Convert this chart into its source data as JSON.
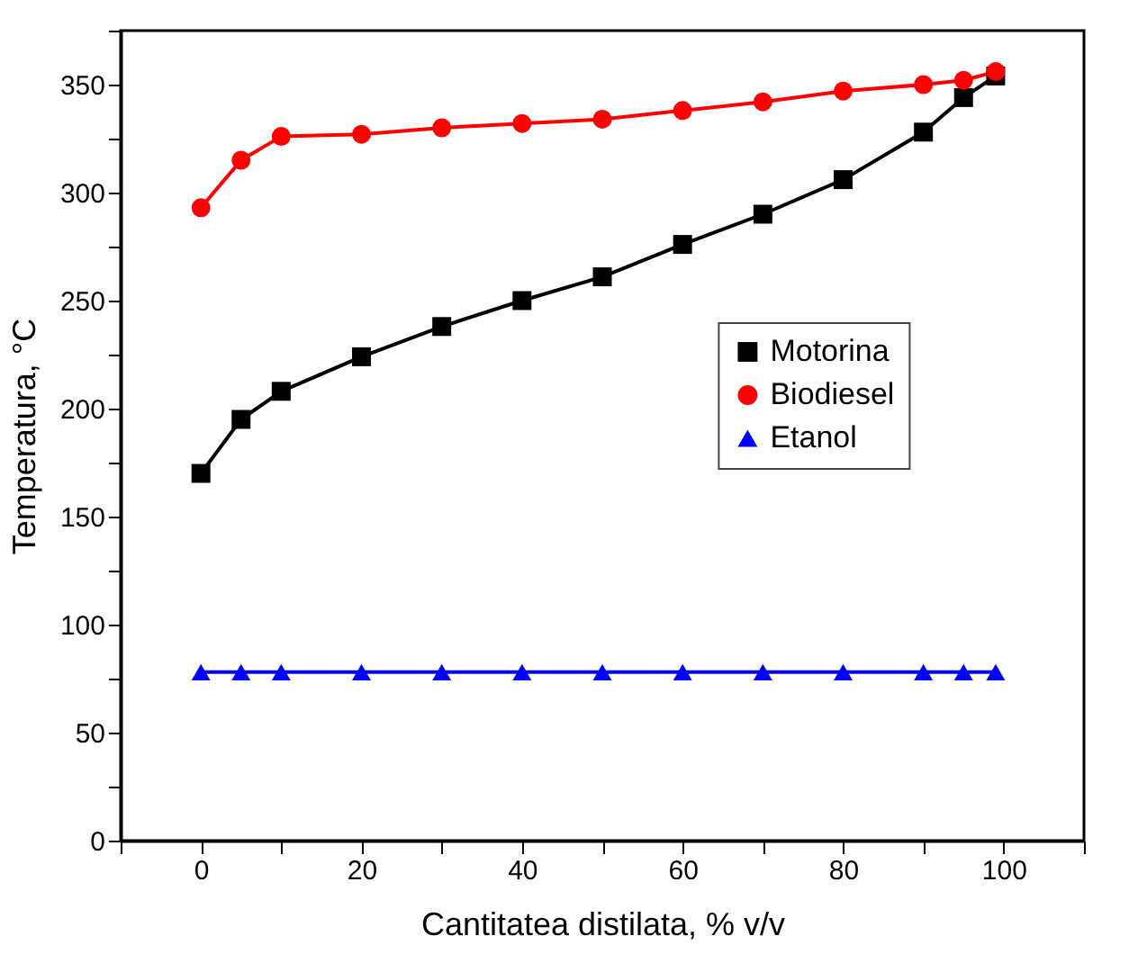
{
  "chart_data": {
    "type": "line",
    "xlabel": "Cantitatea distilata, % v/v",
    "ylabel": "Temperatura, °C",
    "x": [
      0,
      5,
      10,
      20,
      30,
      40,
      50,
      60,
      70,
      80,
      90,
      95,
      99
    ],
    "series": [
      {
        "name": "Motorina",
        "color": "#000000",
        "marker": "square",
        "values": [
          170,
          195,
          208,
          224,
          238,
          250,
          261,
          276,
          290,
          306,
          328,
          344,
          354
        ]
      },
      {
        "name": "Biodiesel",
        "color": "#ff0000",
        "marker": "circle",
        "values": [
          293,
          315,
          326,
          327,
          330,
          332,
          334,
          338,
          342,
          347,
          350,
          352,
          356
        ]
      },
      {
        "name": "Etanol",
        "color": "#0000ff",
        "marker": "triangle",
        "values": [
          78,
          78,
          78,
          78,
          78,
          78,
          78,
          78,
          78,
          78,
          78,
          78,
          78
        ]
      }
    ],
    "xlim": [
      -10,
      110
    ],
    "xticks": [
      {
        "value": -10,
        "label": null
      },
      0,
      {
        "value": 10,
        "label": null
      },
      20,
      {
        "value": 30,
        "label": null
      },
      40,
      {
        "value": 50,
        "label": null
      },
      60,
      {
        "value": 70,
        "label": null
      },
      80,
      {
        "value": 90,
        "label": null
      },
      100,
      {
        "value": 110,
        "label": null
      }
    ],
    "ylim": [
      0,
      375
    ],
    "yticks": [
      0,
      {
        "value": 25,
        "label": null
      },
      50,
      {
        "value": 75,
        "label": null
      },
      100,
      {
        "value": 125,
        "label": null
      },
      150,
      {
        "value": 175,
        "label": null
      },
      200,
      {
        "value": 225,
        "label": null
      },
      250,
      {
        "value": 275,
        "label": null
      },
      300,
      {
        "value": 325,
        "label": null
      },
      350,
      {
        "value": 375,
        "label": null
      }
    ],
    "grid": false,
    "legend": "right",
    "line_style": "solid"
  }
}
